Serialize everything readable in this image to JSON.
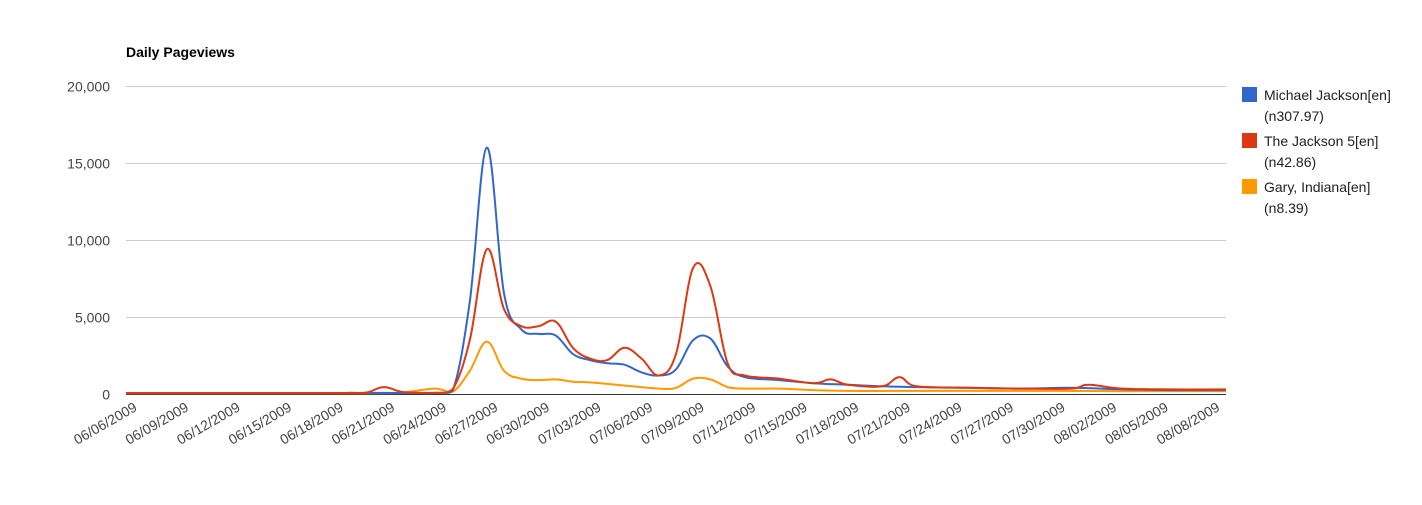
{
  "chart_data": {
    "type": "line",
    "title": "Daily Pageviews",
    "xlabel": "",
    "ylabel": "",
    "ylim": [
      0,
      20000
    ],
    "yticks": [
      0,
      5000,
      10000,
      15000,
      20000
    ],
    "ytick_labels": [
      "0",
      "5,000",
      "10,000",
      "15,000",
      "20,000"
    ],
    "x_start": "06/06/2009",
    "x_end": "08/09/2009",
    "xticks": [
      "06/06/2009",
      "06/09/2009",
      "06/12/2009",
      "06/15/2009",
      "06/18/2009",
      "06/21/2009",
      "06/24/2009",
      "06/27/2009",
      "06/30/2009",
      "07/03/2009",
      "07/06/2009",
      "07/09/2009",
      "07/12/2009",
      "07/15/2009",
      "07/18/2009",
      "07/21/2009",
      "07/24/2009",
      "07/27/2009",
      "07/30/2009",
      "08/02/2009",
      "08/05/2009",
      "08/08/2009"
    ],
    "grid": true,
    "legend_position": "right",
    "series": [
      {
        "name": "Michael Jackson[en]",
        "note": "(n307.97)",
        "color": "#3366cc",
        "points": [
          [
            "06/06/2009",
            60
          ],
          [
            "06/18/2009",
            60
          ],
          [
            "06/20/2009",
            70
          ],
          [
            "06/24/2009",
            80
          ],
          [
            "06/25/2009",
            200
          ],
          [
            "06/26/2009",
            6000
          ],
          [
            "06/27/2009",
            16000
          ],
          [
            "06/28/2009",
            6500
          ],
          [
            "06/29/2009",
            4200
          ],
          [
            "06/30/2009",
            3900
          ],
          [
            "07/01/2009",
            3800
          ],
          [
            "07/02/2009",
            2600
          ],
          [
            "07/03/2009",
            2200
          ],
          [
            "07/04/2009",
            2000
          ],
          [
            "07/05/2009",
            1900
          ],
          [
            "07/06/2009",
            1400
          ],
          [
            "07/07/2009",
            1200
          ],
          [
            "07/08/2009",
            1600
          ],
          [
            "07/09/2009",
            3500
          ],
          [
            "07/10/2009",
            3600
          ],
          [
            "07/11/2009",
            1800
          ],
          [
            "07/12/2009",
            1100
          ],
          [
            "07/14/2009",
            900
          ],
          [
            "07/16/2009",
            700
          ],
          [
            "07/18/2009",
            600
          ],
          [
            "07/20/2009",
            500
          ],
          [
            "07/22/2009",
            450
          ],
          [
            "07/25/2009",
            400
          ],
          [
            "07/28/2009",
            350
          ],
          [
            "07/31/2009",
            400
          ],
          [
            "08/03/2009",
            300
          ],
          [
            "08/06/2009",
            250
          ],
          [
            "08/09/2009",
            250
          ]
        ]
      },
      {
        "name": "The Jackson 5[en]",
        "note": "(n42.86)",
        "color": "#dc3912",
        "points": [
          [
            "06/06/2009",
            60
          ],
          [
            "06/18/2009",
            60
          ],
          [
            "06/19/2009",
            80
          ],
          [
            "06/20/2009",
            100
          ],
          [
            "06/21/2009",
            450
          ],
          [
            "06/22/2009",
            150
          ],
          [
            "06/23/2009",
            80
          ],
          [
            "06/24/2009",
            60
          ],
          [
            "06/25/2009",
            300
          ],
          [
            "06/26/2009",
            3500
          ],
          [
            "06/27/2009",
            9400
          ],
          [
            "06/28/2009",
            5500
          ],
          [
            "06/29/2009",
            4400
          ],
          [
            "06/30/2009",
            4400
          ],
          [
            "07/01/2009",
            4700
          ],
          [
            "07/02/2009",
            3000
          ],
          [
            "07/03/2009",
            2300
          ],
          [
            "07/04/2009",
            2200
          ],
          [
            "07/05/2009",
            3000
          ],
          [
            "07/06/2009",
            2300
          ],
          [
            "07/07/2009",
            1200
          ],
          [
            "07/08/2009",
            2600
          ],
          [
            "07/09/2009",
            8200
          ],
          [
            "07/10/2009",
            7000
          ],
          [
            "07/11/2009",
            2000
          ],
          [
            "07/12/2009",
            1200
          ],
          [
            "07/14/2009",
            1000
          ],
          [
            "07/16/2009",
            700
          ],
          [
            "07/17/2009",
            950
          ],
          [
            "07/18/2009",
            600
          ],
          [
            "07/20/2009",
            500
          ],
          [
            "07/21/2009",
            1100
          ],
          [
            "07/22/2009",
            500
          ],
          [
            "07/25/2009",
            400
          ],
          [
            "07/28/2009",
            350
          ],
          [
            "07/31/2009",
            350
          ],
          [
            "08/01/2009",
            600
          ],
          [
            "08/03/2009",
            350
          ],
          [
            "08/06/2009",
            300
          ],
          [
            "08/09/2009",
            300
          ]
        ]
      },
      {
        "name": "Gary, Indiana[en]",
        "note": "(n8.39)",
        "color": "#ff9900",
        "points": [
          [
            "06/06/2009",
            50
          ],
          [
            "06/20/2009",
            50
          ],
          [
            "06/22/2009",
            100
          ],
          [
            "06/24/2009",
            350
          ],
          [
            "06/25/2009",
            150
          ],
          [
            "06/26/2009",
            1500
          ],
          [
            "06/27/2009",
            3400
          ],
          [
            "06/28/2009",
            1500
          ],
          [
            "06/29/2009",
            1000
          ],
          [
            "06/30/2009",
            900
          ],
          [
            "07/01/2009",
            950
          ],
          [
            "07/02/2009",
            800
          ],
          [
            "07/03/2009",
            750
          ],
          [
            "07/05/2009",
            550
          ],
          [
            "07/07/2009",
            350
          ],
          [
            "07/08/2009",
            400
          ],
          [
            "07/09/2009",
            1000
          ],
          [
            "07/10/2009",
            950
          ],
          [
            "07/11/2009",
            450
          ],
          [
            "07/12/2009",
            350
          ],
          [
            "07/14/2009",
            350
          ],
          [
            "07/16/2009",
            250
          ],
          [
            "07/18/2009",
            200
          ],
          [
            "07/21/2009",
            200
          ],
          [
            "07/25/2009",
            200
          ],
          [
            "07/30/2009",
            200
          ],
          [
            "08/03/2009",
            180
          ],
          [
            "08/06/2009",
            180
          ],
          [
            "08/09/2009",
            180
          ]
        ]
      }
    ]
  }
}
